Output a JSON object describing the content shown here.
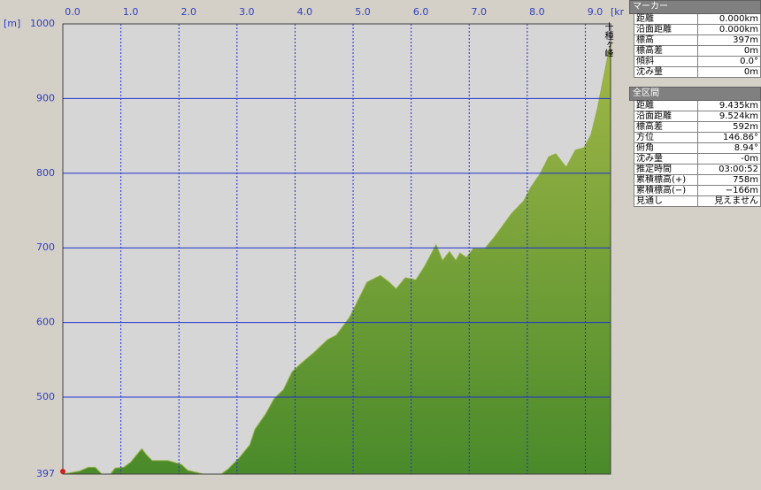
{
  "chart_data": {
    "type": "area",
    "y_unit": "[m]",
    "x_unit": "[km]",
    "peak_label": "十種ヶ峰",
    "color": "#8fb03c",
    "grid": true,
    "xlim": [
      0,
      9.435
    ],
    "ylim": [
      397,
      1000
    ],
    "xticks": [
      {
        "value": 0,
        "label": "0.0"
      },
      {
        "value": 1,
        "label": "1.0"
      },
      {
        "value": 2,
        "label": "2.0"
      },
      {
        "value": 3,
        "label": "3.0"
      },
      {
        "value": 4,
        "label": "4.0"
      },
      {
        "value": 5,
        "label": "5.0"
      },
      {
        "value": 6,
        "label": "6.0"
      },
      {
        "value": 7,
        "label": "7.0"
      },
      {
        "value": 8,
        "label": "8.0"
      },
      {
        "value": 9,
        "label": "9.0"
      }
    ],
    "yticks": [
      397,
      500,
      600,
      700,
      800,
      900,
      1000
    ],
    "series": [
      {
        "name": "標高",
        "x": [
          0,
          0.29,
          0.44,
          0.56,
          0.67,
          0.82,
          0.9,
          1.05,
          1.17,
          1.36,
          1.45,
          1.54,
          1.81,
          2.04,
          2.15,
          2.42,
          2.73,
          2.85,
          3.03,
          3.22,
          3.31,
          3.49,
          3.64,
          3.8,
          3.95,
          4.1,
          4.33,
          4.56,
          4.71,
          4.94,
          5.24,
          5.47,
          5.62,
          5.74,
          5.9,
          6.08,
          6.23,
          6.43,
          6.54,
          6.66,
          6.77,
          6.84,
          6.95,
          7.07,
          7.27,
          7.45,
          7.73,
          7.94,
          8.06,
          8.22,
          8.37,
          8.49,
          8.67,
          8.83,
          8.98,
          9.1,
          9.21,
          9.33,
          9.435
        ],
        "values": [
          397,
          401,
          406,
          406,
          397,
          397,
          405,
          406,
          413,
          431,
          422,
          415,
          415,
          410,
          402,
          397,
          397,
          404,
          418,
          436,
          457,
          477,
          498,
          510,
          534,
          545,
          560,
          577,
          583,
          607,
          654,
          663,
          654,
          645,
          660,
          657,
          675,
          704,
          683,
          695,
          683,
          693,
          687,
          699,
          699,
          716,
          746,
          763,
          781,
          799,
          822,
          826,
          808,
          831,
          834,
          852,
          887,
          934,
          975
        ]
      }
    ]
  },
  "marker_panel": {
    "title": "マーカー",
    "rows": [
      [
        "距離",
        "0.000km"
      ],
      [
        "沿面距離",
        "0.000km"
      ],
      [
        "標高",
        "397m"
      ],
      [
        "標高差",
        "0m"
      ],
      [
        "傾斜",
        "0.0°"
      ],
      [
        "沈み量",
        "0m"
      ]
    ]
  },
  "section_panel": {
    "title": "全区間",
    "rows": [
      [
        "距離",
        "9.435km"
      ],
      [
        "沿面距離",
        "9.524km"
      ],
      [
        "標高差",
        "592m"
      ],
      [
        "方位",
        "146.86°"
      ],
      [
        "俯角",
        "8.94°"
      ],
      [
        "沈み量",
        "-0m"
      ],
      [
        "推定時間",
        "03:00:52"
      ],
      [
        "累積標高(+)",
        "758m"
      ],
      [
        "累積標高(−)",
        "−166m"
      ],
      [
        "見通し",
        "見えません"
      ]
    ]
  }
}
